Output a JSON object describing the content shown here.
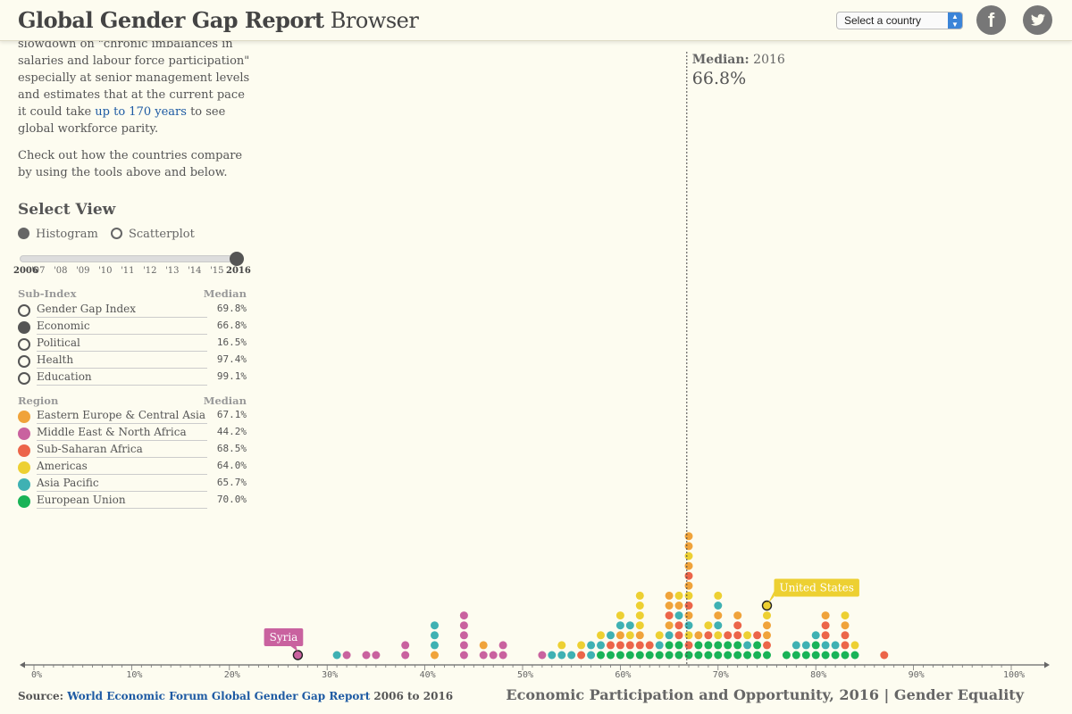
{
  "header": {
    "title_bold": "Global Gender Gap Report",
    "title_light": " Browser",
    "country_select": "Select a country",
    "facebook_icon": "facebook-icon",
    "twitter_icon": "twitter-icon",
    "facebook_glyph": "f"
  },
  "intro": {
    "p1_a": "slowdown on \"chronic imbalances in salaries and labour force participation\" especially at senior management levels and estimates that at the current pace it could take ",
    "p1_link": "up to 170 years",
    "p1_b": " to see global workforce parity.",
    "p2": "Check out how the countries compare by using the tools above and below."
  },
  "view": {
    "title": "Select View",
    "options": [
      {
        "label": "Histogram",
        "selected": true
      },
      {
        "label": "Scatterplot",
        "selected": false
      }
    ]
  },
  "years": {
    "ticks": [
      "2006",
      "'07",
      "'08",
      "'09",
      "'10",
      "'11",
      "'12",
      "'13",
      "'14",
      "'15",
      "2016"
    ],
    "selected": "2016"
  },
  "subindex": {
    "head": "Sub-Index",
    "median_head": "Median",
    "items": [
      {
        "label": "Gender Gap Index",
        "value": "69.8%",
        "selected": false
      },
      {
        "label": "Economic",
        "value": "66.8%",
        "selected": true
      },
      {
        "label": "Political",
        "value": "16.5%",
        "selected": false
      },
      {
        "label": "Health",
        "value": "97.4%",
        "selected": false
      },
      {
        "label": "Education",
        "value": "99.1%",
        "selected": false
      }
    ]
  },
  "region": {
    "head": "Region",
    "median_head": "Median",
    "items": [
      {
        "label": "Eastern Europe & Central Asia",
        "value": "67.1%",
        "color": "#f0a33a"
      },
      {
        "label": "Middle East & North Africa",
        "value": "44.2%",
        "color": "#c9629f"
      },
      {
        "label": "Sub-Saharan Africa",
        "value": "68.5%",
        "color": "#ec6549"
      },
      {
        "label": "Americas",
        "value": "64.0%",
        "color": "#edd032"
      },
      {
        "label": "Asia Pacific",
        "value": "65.7%",
        "color": "#3fb1b3"
      },
      {
        "label": "European Union",
        "value": "70.0%",
        "color": "#19b357"
      }
    ]
  },
  "chart_data": {
    "type": "scatter",
    "subtype": "dot-histogram",
    "title": "Economic Participation and Opportunity, 2016 | Gender Equality",
    "xlabel": "",
    "ylabel": "",
    "xlim": [
      0,
      100
    ],
    "x_ticks": [
      "0%",
      "10%",
      "20%",
      "30%",
      "40%",
      "50%",
      "60%",
      "70%",
      "80%",
      "90%",
      "100%"
    ],
    "median": {
      "label": "Median:",
      "year": "2016",
      "value": 66.8,
      "value_label": "66.8%"
    },
    "callouts": [
      {
        "label": "Syria",
        "x": 27,
        "level": 0,
        "region": "Middle East & North Africa"
      },
      {
        "label": "United States",
        "x": 75,
        "level": 5,
        "region": "Americas"
      }
    ],
    "stacks": [
      {
        "x": 27,
        "regions": [
          "M"
        ]
      },
      {
        "x": 31,
        "regions": [
          "A"
        ]
      },
      {
        "x": 32,
        "regions": [
          "M"
        ]
      },
      {
        "x": 34,
        "regions": [
          "M"
        ]
      },
      {
        "x": 35,
        "regions": [
          "M"
        ]
      },
      {
        "x": 38,
        "regions": [
          "M",
          "M"
        ]
      },
      {
        "x": 41,
        "regions": [
          "E",
          "A",
          "A",
          "A"
        ]
      },
      {
        "x": 44,
        "regions": [
          "M",
          "M",
          "M",
          "M",
          "M"
        ]
      },
      {
        "x": 46,
        "regions": [
          "M",
          "E"
        ]
      },
      {
        "x": 47,
        "regions": [
          "M"
        ]
      },
      {
        "x": 48,
        "regions": [
          "M",
          "M"
        ]
      },
      {
        "x": 52,
        "regions": [
          "M"
        ]
      },
      {
        "x": 53,
        "regions": [
          "A"
        ]
      },
      {
        "x": 54,
        "regions": [
          "A",
          "Y"
        ]
      },
      {
        "x": 55,
        "regions": [
          "A"
        ]
      },
      {
        "x": 56,
        "regions": [
          "S",
          "Y"
        ]
      },
      {
        "x": 57,
        "regions": [
          "A",
          "A"
        ]
      },
      {
        "x": 58,
        "regions": [
          "G",
          "A",
          "Y"
        ]
      },
      {
        "x": 59,
        "regions": [
          "G",
          "S",
          "A"
        ]
      },
      {
        "x": 60,
        "regions": [
          "G",
          "S",
          "E",
          "A",
          "Y"
        ]
      },
      {
        "x": 61,
        "regions": [
          "G",
          "S",
          "Y",
          "A"
        ]
      },
      {
        "x": 62,
        "regions": [
          "G",
          "S",
          "E",
          "Y",
          "Y",
          "Y",
          "Y"
        ]
      },
      {
        "x": 63,
        "regions": [
          "G",
          "S"
        ]
      },
      {
        "x": 64,
        "regions": [
          "G",
          "A",
          "Y"
        ]
      },
      {
        "x": 65,
        "regions": [
          "G",
          "G",
          "A",
          "E",
          "S",
          "E",
          "E"
        ]
      },
      {
        "x": 66,
        "regions": [
          "G",
          "G",
          "S",
          "S",
          "A",
          "E",
          "Y"
        ]
      },
      {
        "x": 67,
        "regions": [
          "G",
          "S",
          "Y",
          "A",
          "E",
          "S",
          "Y",
          "E",
          "S",
          "E",
          "Y",
          "E",
          "E"
        ]
      },
      {
        "x": 68,
        "regions": [
          "G",
          "G",
          "E"
        ]
      },
      {
        "x": 69,
        "regions": [
          "G",
          "G",
          "S",
          "Y"
        ]
      },
      {
        "x": 70,
        "regions": [
          "G",
          "G",
          "Y",
          "A",
          "E",
          "A",
          "Y"
        ]
      },
      {
        "x": 71,
        "regions": [
          "G",
          "G",
          "S"
        ]
      },
      {
        "x": 72,
        "regions": [
          "G",
          "G",
          "S",
          "S",
          "E"
        ]
      },
      {
        "x": 73,
        "regions": [
          "G",
          "A",
          "Y"
        ]
      },
      {
        "x": 74,
        "regions": [
          "G",
          "G",
          "S"
        ]
      },
      {
        "x": 75,
        "regions": [
          "G",
          "S",
          "E",
          "E",
          "Y",
          "Y"
        ]
      },
      {
        "x": 77,
        "regions": [
          "G"
        ]
      },
      {
        "x": 78,
        "regions": [
          "G",
          "A"
        ]
      },
      {
        "x": 79,
        "regions": [
          "G",
          "A"
        ]
      },
      {
        "x": 80,
        "regions": [
          "G",
          "G",
          "A"
        ]
      },
      {
        "x": 81,
        "regions": [
          "G",
          "A",
          "S",
          "S",
          "E"
        ]
      },
      {
        "x": 82,
        "regions": [
          "G",
          "A"
        ]
      },
      {
        "x": 83,
        "regions": [
          "G",
          "S",
          "S",
          "E",
          "Y"
        ]
      },
      {
        "x": 84,
        "regions": [
          "G",
          "Y"
        ]
      },
      {
        "x": 87,
        "regions": [
          "S"
        ]
      }
    ],
    "region_colors": {
      "E": "#f0a33a",
      "M": "#c9629f",
      "S": "#ec6549",
      "Y": "#edd032",
      "A": "#3fb1b3",
      "G": "#19b357"
    }
  },
  "footer": {
    "source_label": "Source: ",
    "source_link": "World Economic Forum Global Gender Gap Report",
    "source_years": " 2006 to 2016"
  }
}
